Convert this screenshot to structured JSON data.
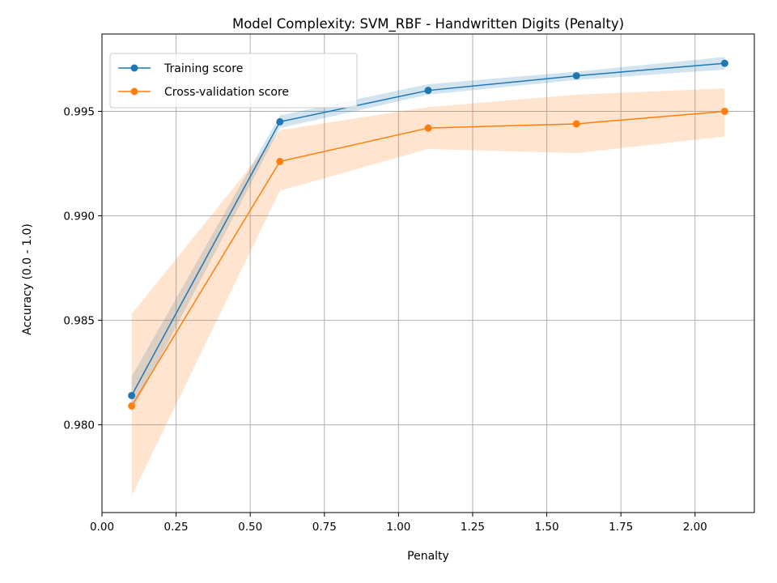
{
  "chart_data": {
    "type": "line",
    "title": "Model Complexity: SVM_RBF - Handwritten Digits (Penalty)",
    "xlabel": "Penalty",
    "ylabel": "Accuracy (0.0 - 1.0)",
    "xlim": [
      0.0,
      2.2
    ],
    "ylim": [
      0.9758,
      0.9987
    ],
    "xticks": [
      0.0,
      0.25,
      0.5,
      0.75,
      1.0,
      1.25,
      1.5,
      1.75,
      2.0
    ],
    "xtick_labels": [
      "0.00",
      "0.25",
      "0.50",
      "0.75",
      "1.00",
      "1.25",
      "1.50",
      "1.75",
      "2.00"
    ],
    "yticks": [
      0.98,
      0.985,
      0.99,
      0.995
    ],
    "ytick_labels": [
      "0.980",
      "0.985",
      "0.990",
      "0.995"
    ],
    "grid": true,
    "legend_position": "top-left",
    "x": [
      0.1,
      0.6,
      1.1,
      1.6,
      2.1
    ],
    "series": [
      {
        "name": "Training score",
        "color": "#1f77b4",
        "values": [
          0.9814,
          0.9945,
          0.996,
          0.9967,
          0.9973
        ],
        "band_low": [
          0.9806,
          0.9942,
          0.9958,
          0.9965,
          0.997
        ],
        "band_high": [
          0.9823,
          0.9948,
          0.9963,
          0.9969,
          0.9976
        ]
      },
      {
        "name": "Cross-validation score",
        "color": "#ff7f0e",
        "values": [
          0.9809,
          0.9926,
          0.9942,
          0.9944,
          0.995
        ],
        "band_low": [
          0.9766,
          0.9912,
          0.9932,
          0.993,
          0.9938
        ],
        "band_high": [
          0.9853,
          0.9941,
          0.9952,
          0.9958,
          0.9961
        ]
      }
    ]
  }
}
